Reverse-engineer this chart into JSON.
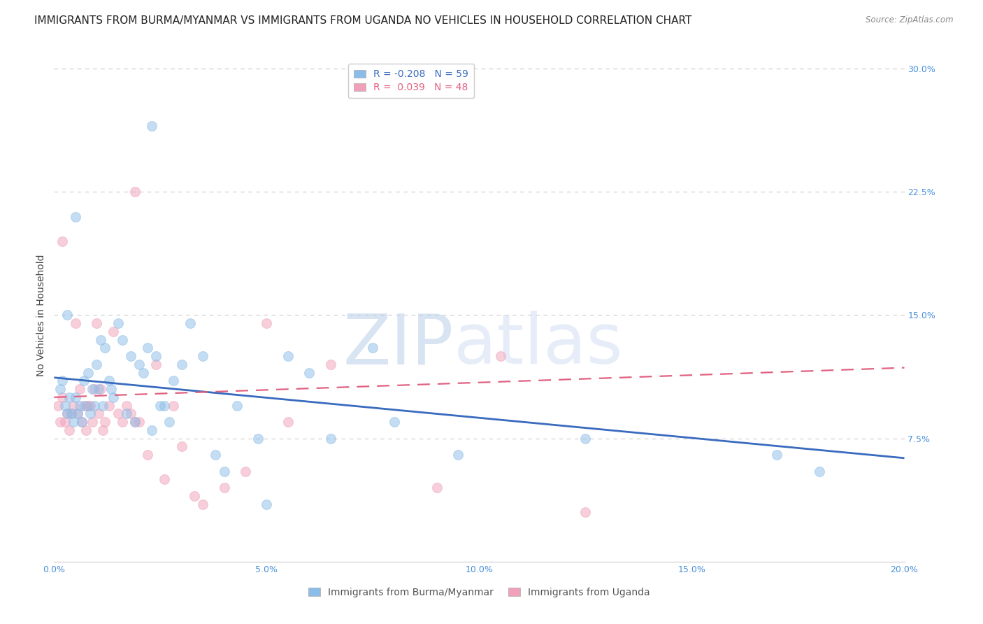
{
  "title": "IMMIGRANTS FROM BURMA/MYANMAR VS IMMIGRANTS FROM UGANDA NO VEHICLES IN HOUSEHOLD CORRELATION CHART",
  "source": "Source: ZipAtlas.com",
  "ylabel": "No Vehicles in Household",
  "xlabel_vals": [
    0.0,
    5.0,
    10.0,
    15.0,
    20.0
  ],
  "ylabel_vals_right": [
    30.0,
    22.5,
    15.0,
    7.5
  ],
  "xlim": [
    0.0,
    20.0
  ],
  "ylim": [
    0.0,
    30.0
  ],
  "blue_color": "#8bbde8",
  "pink_color": "#f0a0b8",
  "blue_line_color": "#3a6bbf",
  "pink_line_color": "#e06080",
  "R_blue": -0.208,
  "N_blue": 59,
  "R_pink": 0.039,
  "N_pink": 48,
  "legend_label_blue": "Immigrants from Burma/Myanmar",
  "legend_label_pink": "Immigrants from Uganda",
  "watermark_zip": "ZIP",
  "watermark_atlas": "atlas",
  "blue_scatter_x": [
    0.15,
    0.2,
    0.25,
    0.3,
    0.35,
    0.4,
    0.45,
    0.5,
    0.55,
    0.6,
    0.65,
    0.7,
    0.75,
    0.8,
    0.85,
    0.9,
    0.95,
    1.0,
    1.05,
    1.1,
    1.15,
    1.2,
    1.3,
    1.35,
    1.4,
    1.5,
    1.6,
    1.7,
    1.8,
    1.9,
    2.0,
    2.1,
    2.2,
    2.3,
    2.4,
    2.5,
    2.6,
    2.7,
    2.8,
    3.0,
    3.2,
    3.5,
    3.8,
    4.0,
    4.3,
    4.8,
    5.0,
    5.5,
    6.0,
    6.5,
    7.5,
    8.0,
    9.5,
    12.5,
    17.0,
    18.0,
    2.3,
    0.3,
    0.5
  ],
  "blue_scatter_y": [
    10.5,
    11.0,
    9.5,
    9.0,
    10.0,
    9.0,
    8.5,
    10.0,
    9.0,
    9.5,
    8.5,
    11.0,
    9.5,
    11.5,
    9.0,
    10.5,
    9.5,
    12.0,
    10.5,
    13.5,
    9.5,
    13.0,
    11.0,
    10.5,
    10.0,
    14.5,
    13.5,
    9.0,
    12.5,
    8.5,
    12.0,
    11.5,
    13.0,
    8.0,
    12.5,
    9.5,
    9.5,
    8.5,
    11.0,
    12.0,
    14.5,
    12.5,
    6.5,
    5.5,
    9.5,
    7.5,
    3.5,
    12.5,
    11.5,
    7.5,
    13.0,
    8.5,
    6.5,
    7.5,
    6.5,
    5.5,
    26.5,
    15.0,
    21.0
  ],
  "pink_scatter_x": [
    0.1,
    0.15,
    0.2,
    0.25,
    0.3,
    0.35,
    0.4,
    0.45,
    0.5,
    0.55,
    0.6,
    0.65,
    0.7,
    0.75,
    0.8,
    0.85,
    0.9,
    0.95,
    1.0,
    1.05,
    1.1,
    1.15,
    1.2,
    1.3,
    1.4,
    1.5,
    1.6,
    1.7,
    1.8,
    1.9,
    2.0,
    2.2,
    2.4,
    2.6,
    2.8,
    3.0,
    3.3,
    3.5,
    4.0,
    4.5,
    5.0,
    5.5,
    6.5,
    9.0,
    10.5,
    12.5,
    1.9,
    0.2
  ],
  "pink_scatter_y": [
    9.5,
    8.5,
    10.0,
    8.5,
    9.0,
    8.0,
    9.0,
    9.5,
    14.5,
    9.0,
    10.5,
    8.5,
    9.5,
    8.0,
    9.5,
    9.5,
    8.5,
    10.5,
    14.5,
    9.0,
    10.5,
    8.0,
    8.5,
    9.5,
    14.0,
    9.0,
    8.5,
    9.5,
    9.0,
    8.5,
    8.5,
    6.5,
    12.0,
    5.0,
    9.5,
    7.0,
    4.0,
    3.5,
    4.5,
    5.5,
    14.5,
    8.5,
    12.0,
    4.5,
    12.5,
    3.0,
    22.5,
    19.5
  ],
  "blue_line_x0": 0.0,
  "blue_line_x1": 20.0,
  "blue_line_y0": 11.2,
  "blue_line_y1": 6.3,
  "pink_line_x0": 0.0,
  "pink_line_x1": 20.0,
  "pink_line_y0": 10.0,
  "pink_line_y1": 11.8,
  "grid_color": "#cccccc",
  "background_color": "#ffffff",
  "title_fontsize": 11,
  "axis_label_fontsize": 10,
  "tick_fontsize": 9,
  "legend_fontsize": 10,
  "scatter_size": 100,
  "scatter_alpha": 0.5,
  "scatter_lw": 0.8
}
